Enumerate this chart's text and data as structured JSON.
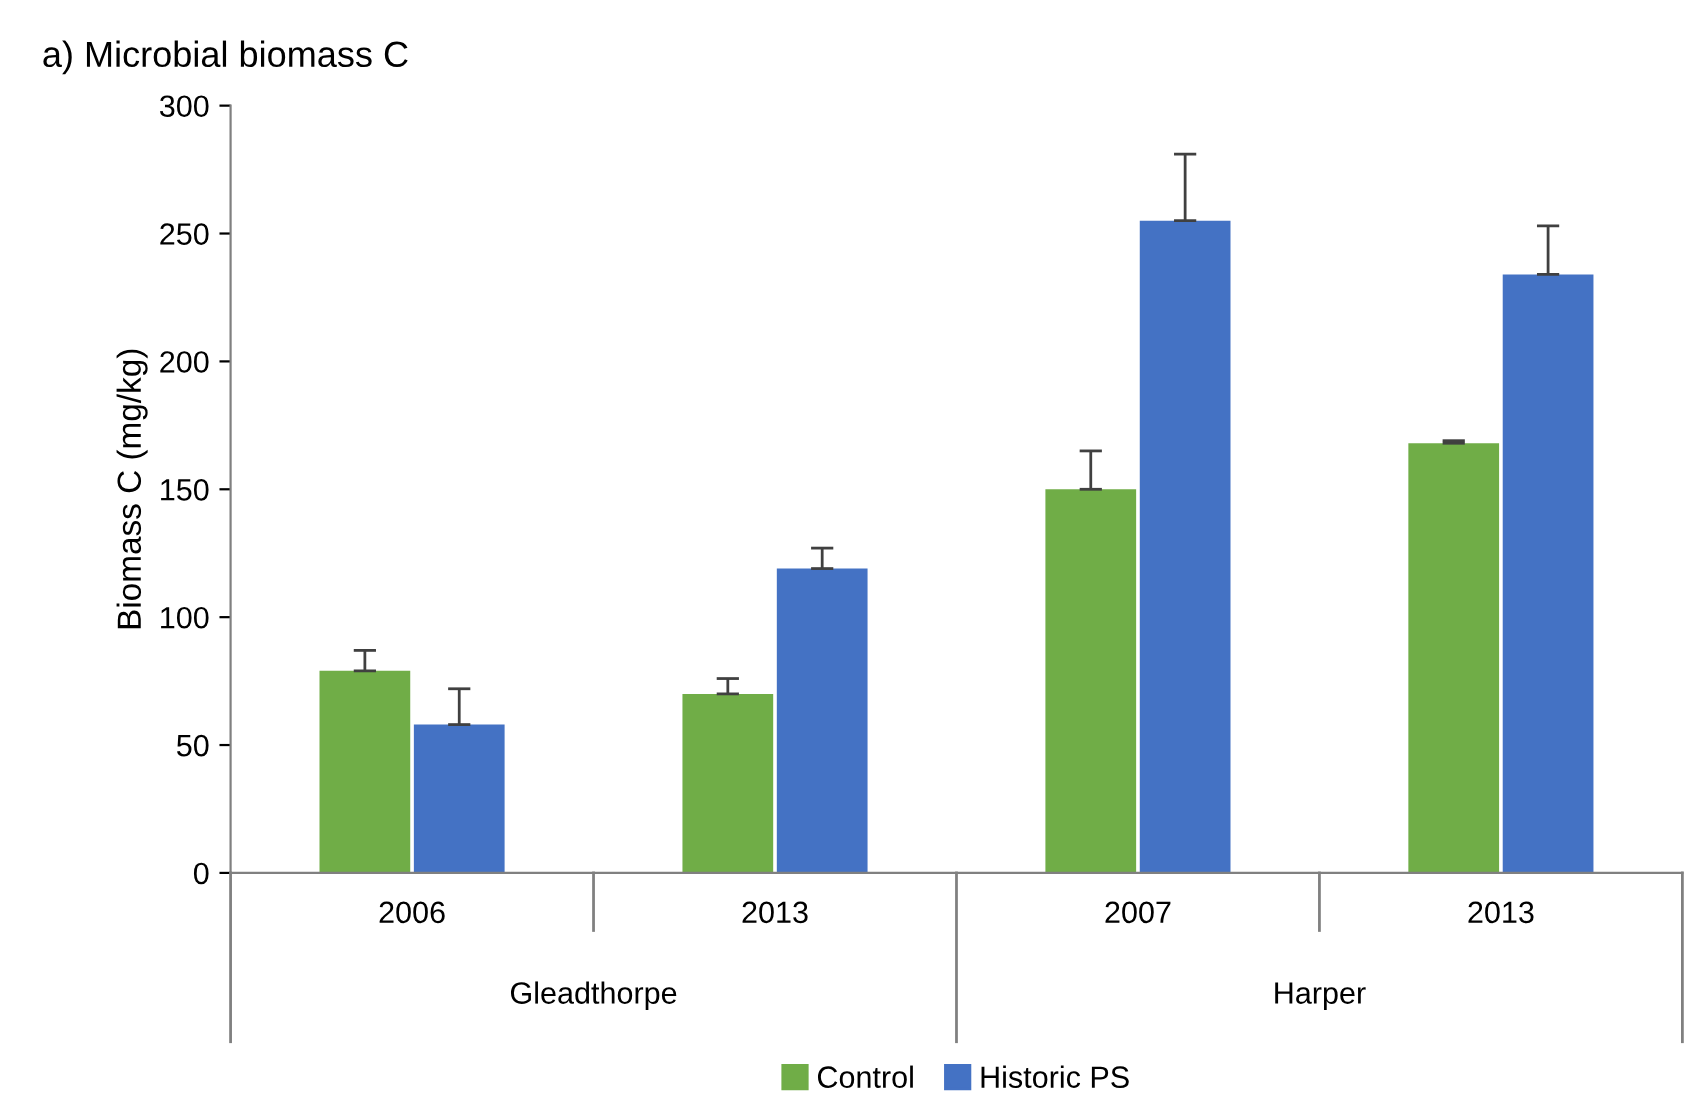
{
  "chart_data": {
    "type": "bar",
    "title": "a) Microbial biomass C",
    "ylabel": "Biomass C (mg/kg)",
    "categories": [
      "2006",
      "2013",
      "2007",
      "2013"
    ],
    "annotations": [
      "Gleadthorpe",
      "Harper"
    ],
    "series": [
      {
        "name": "Control",
        "color": "#70ad47",
        "values": [
          79,
          70,
          150,
          168
        ],
        "errors": [
          [
            79,
            87
          ],
          [
            70,
            76
          ],
          [
            150,
            165
          ],
          [
            168,
            169
          ]
        ]
      },
      {
        "name": "Historic PS",
        "color": "#4472c4",
        "values": [
          58,
          119,
          255,
          234
        ],
        "errors": [
          [
            58,
            72
          ],
          [
            119,
            127
          ],
          [
            255,
            281
          ],
          [
            234,
            253
          ]
        ]
      }
    ],
    "ylim": [
      0,
      300
    ],
    "yticks": [
      0,
      50,
      100,
      150,
      200,
      250,
      300
    ],
    "grid": false,
    "legend": "bottom"
  }
}
